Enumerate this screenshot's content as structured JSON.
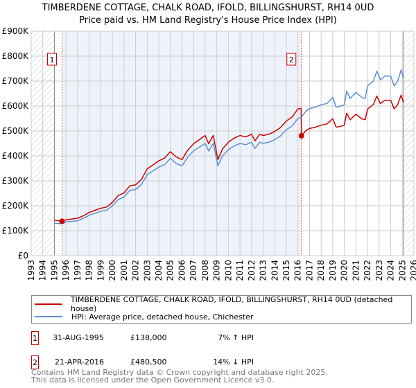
{
  "title_line1": "TIMBERDENE COTTAGE, CHALK ROAD, IFOLD, BILLINGSHURST, RH14 0UD",
  "title_line2": "Price paid vs. HM Land Registry's House Price Index (HPI)",
  "legend": {
    "property_label": "TIMBERDENE COTTAGE, CHALK ROAD, IFOLD, BILLINGSHURST, RH14 0UD (detached house)",
    "hpi_label": "HPI: Average price, detached house, Chichester"
  },
  "sales": [
    {
      "num": "1",
      "date": "31-AUG-1995",
      "price": "£138,000",
      "hpi": "7% ↑ HPI"
    },
    {
      "num": "2",
      "date": "21-APR-2016",
      "price": "£480,500",
      "hpi": "14% ↓ HPI"
    }
  ],
  "footer_line1": "Contains HM Land Registry data © Crown copyright and database right 2025.",
  "footer_line2": "This data is licensed under the Open Government Licence v3.0.",
  "colors": {
    "property": "#cc0000",
    "hpi": "#5b8fd0",
    "shade": "#eef3fb",
    "grid": "#cccccc"
  },
  "chart_data": {
    "type": "line",
    "xlabel": "",
    "ylabel": "",
    "xlim": [
      1993,
      2026
    ],
    "ylim": [
      0,
      900000
    ],
    "x_ticks": [
      "1993",
      "1994",
      "1995",
      "1996",
      "1997",
      "1998",
      "1999",
      "2000",
      "2001",
      "2002",
      "2003",
      "2004",
      "2005",
      "2006",
      "2007",
      "2008",
      "2009",
      "2010",
      "2011",
      "2012",
      "2013",
      "2014",
      "2015",
      "2016",
      "2017",
      "2018",
      "2019",
      "2020",
      "2021",
      "2022",
      "2023",
      "2024",
      "2025",
      "2026"
    ],
    "y_ticks": [
      {
        "v": 0,
        "label": "£0"
      },
      {
        "v": 100000,
        "label": "£100K"
      },
      {
        "v": 200000,
        "label": "£200K"
      },
      {
        "v": 300000,
        "label": "£300K"
      },
      {
        "v": 400000,
        "label": "£400K"
      },
      {
        "v": 500000,
        "label": "£500K"
      },
      {
        "v": 600000,
        "label": "£600K"
      },
      {
        "v": 700000,
        "label": "£700K"
      },
      {
        "v": 800000,
        "label": "£800K"
      },
      {
        "v": 900000,
        "label": "£900K"
      }
    ],
    "data_range": [
      1995,
      2025.1
    ],
    "shaded_between_sales": [
      1995.66,
      2016.3
    ],
    "series": [
      {
        "name": "hpi",
        "x": [
          1995,
          1995.6,
          1996,
          1997,
          1997.5,
          1998,
          1998.5,
          1999,
          1999.5,
          2000,
          2000.5,
          2001,
          2001.5,
          2002,
          2002.5,
          2003,
          2003.5,
          2004,
          2004.5,
          2005,
          2005.5,
          2006,
          2006.5,
          2007,
          2007.5,
          2008,
          2008.3,
          2008.7,
          2009.1,
          2009.5,
          2010,
          2010.5,
          2011,
          2011.5,
          2012,
          2012.3,
          2012.7,
          2013,
          2013.5,
          2014,
          2014.5,
          2015,
          2015.5,
          2016,
          2016.3,
          2016.7,
          2017,
          2017.5,
          2018,
          2018.5,
          2019,
          2019.3,
          2019.7,
          2020,
          2020.2,
          2020.5,
          2021,
          2021.5,
          2021.8,
          2022,
          2022.5,
          2022.8,
          2023.1,
          2023.5,
          2024,
          2024.3,
          2024.6,
          2024.9,
          2025.1
        ],
        "values": [
          130,
          128,
          135,
          140,
          150,
          162,
          170,
          178,
          182,
          200,
          225,
          235,
          262,
          265,
          285,
          325,
          340,
          355,
          365,
          390,
          370,
          360,
          395,
          420,
          435,
          450,
          420,
          450,
          360,
          400,
          425,
          440,
          450,
          445,
          455,
          430,
          455,
          450,
          455,
          465,
          480,
          505,
          520,
          550,
          555,
          580,
          590,
          595,
          605,
          610,
          635,
          595,
          600,
          605,
          660,
          630,
          655,
          635,
          630,
          680,
          700,
          740,
          705,
          720,
          720,
          680,
          700,
          745,
          710
        ],
        "unit": "thousand GBP"
      },
      {
        "name": "property",
        "x": [
          1995,
          1995.6,
          1996,
          1997,
          1997.5,
          1998,
          1998.5,
          1999,
          1999.5,
          2000,
          2000.5,
          2001,
          2001.5,
          2002,
          2002.5,
          2003,
          2003.5,
          2004,
          2004.5,
          2005,
          2005.5,
          2006,
          2006.5,
          2007,
          2007.5,
          2008,
          2008.3,
          2008.7,
          2009.1,
          2009.5,
          2010,
          2010.5,
          2011,
          2011.5,
          2012,
          2012.3,
          2012.7,
          2013,
          2013.5,
          2014,
          2014.5,
          2015,
          2015.5,
          2016,
          2016.28,
          2016.3,
          2016.7,
          2017,
          2017.5,
          2018,
          2018.5,
          2019,
          2019.3,
          2019.7,
          2020,
          2020.2,
          2020.5,
          2021,
          2021.5,
          2021.8,
          2022,
          2022.5,
          2022.8,
          2023.1,
          2023.5,
          2024,
          2024.3,
          2024.6,
          2024.9,
          2025.1
        ],
        "values": [
          142,
          138,
          144,
          150,
          160,
          173,
          182,
          190,
          195,
          214,
          241,
          251,
          280,
          284,
          305,
          348,
          364,
          380,
          391,
          417,
          396,
          385,
          423,
          449,
          465,
          482,
          449,
          482,
          385,
          428,
          455,
          471,
          482,
          476,
          487,
          460,
          487,
          482,
          487,
          498,
          514,
          540,
          556,
          589,
          590,
          480.5,
          502,
          510,
          515,
          523,
          528,
          549,
          515,
          519,
          523,
          571,
          545,
          567,
          549,
          545,
          588,
          606,
          640,
          610,
          623,
          623,
          588,
          606,
          644,
          614
        ],
        "unit": "thousand GBP"
      }
    ],
    "sale_points": [
      {
        "label": "1",
        "x": 1995.66,
        "y": 138000
      },
      {
        "label": "2",
        "x": 2016.3,
        "y": 480500
      }
    ]
  }
}
